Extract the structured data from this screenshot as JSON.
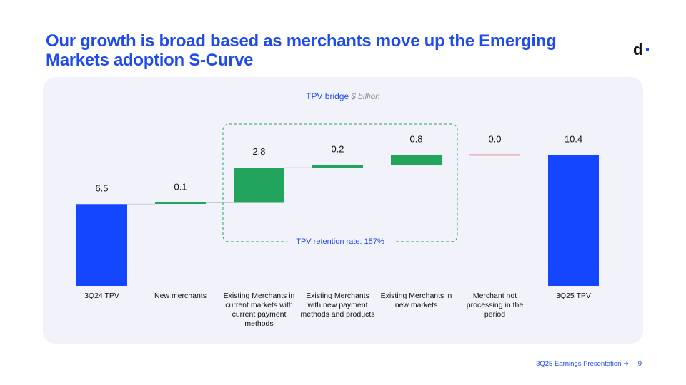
{
  "title": "Our growth is broad based as merchants move up the Emerging Markets adoption S-Curve",
  "logo": {
    "text": "d",
    "icon": "dlocal-logo-icon"
  },
  "chart_heading": {
    "label": "TPV bridge",
    "unit": "$ billion"
  },
  "chart_data": {
    "type": "waterfall",
    "title": "TPV bridge",
    "unit": "$ billion",
    "categories": [
      "3Q24 TPV",
      "New merchants",
      "Existing Merchants in current markets with current payment methods",
      "Existing Merchants with new payment methods and products",
      "Existing Merchants in new markets",
      "Merchant not processing in the period",
      "3Q25 TPV"
    ],
    "category_lines": [
      [
        "3Q24 TPV"
      ],
      [
        "New merchants"
      ],
      [
        "Existing Merchants in",
        "current markets with",
        "current payment",
        "methods"
      ],
      [
        "Existing Merchants",
        "with new payment",
        "methods and products"
      ],
      [
        "Existing Merchants in",
        "new markets"
      ],
      [
        "Merchant not",
        "processing in the",
        "period"
      ],
      [
        "3Q25 TPV"
      ]
    ],
    "values": [
      6.5,
      0.1,
      2.8,
      0.2,
      0.8,
      0.0,
      10.4
    ],
    "value_labels": [
      "6.5",
      "0.1",
      "2.8",
      "0.2",
      "0.8",
      "0.0",
      "10.4"
    ],
    "kinds": [
      "total",
      "increase",
      "increase",
      "increase",
      "increase",
      "decrease",
      "total"
    ],
    "colors": {
      "total": "#1446ff",
      "increase": "#22a45d",
      "decrease": "#e53935",
      "connector": "#c9ccd6"
    },
    "annotation": {
      "label": "TPV retention rate: 157%",
      "span": [
        2,
        4
      ]
    },
    "ylim": [
      0,
      11
    ]
  },
  "footer": {
    "text": "3Q25 Earnings Presentation",
    "arrow": "➜",
    "page": "9"
  }
}
